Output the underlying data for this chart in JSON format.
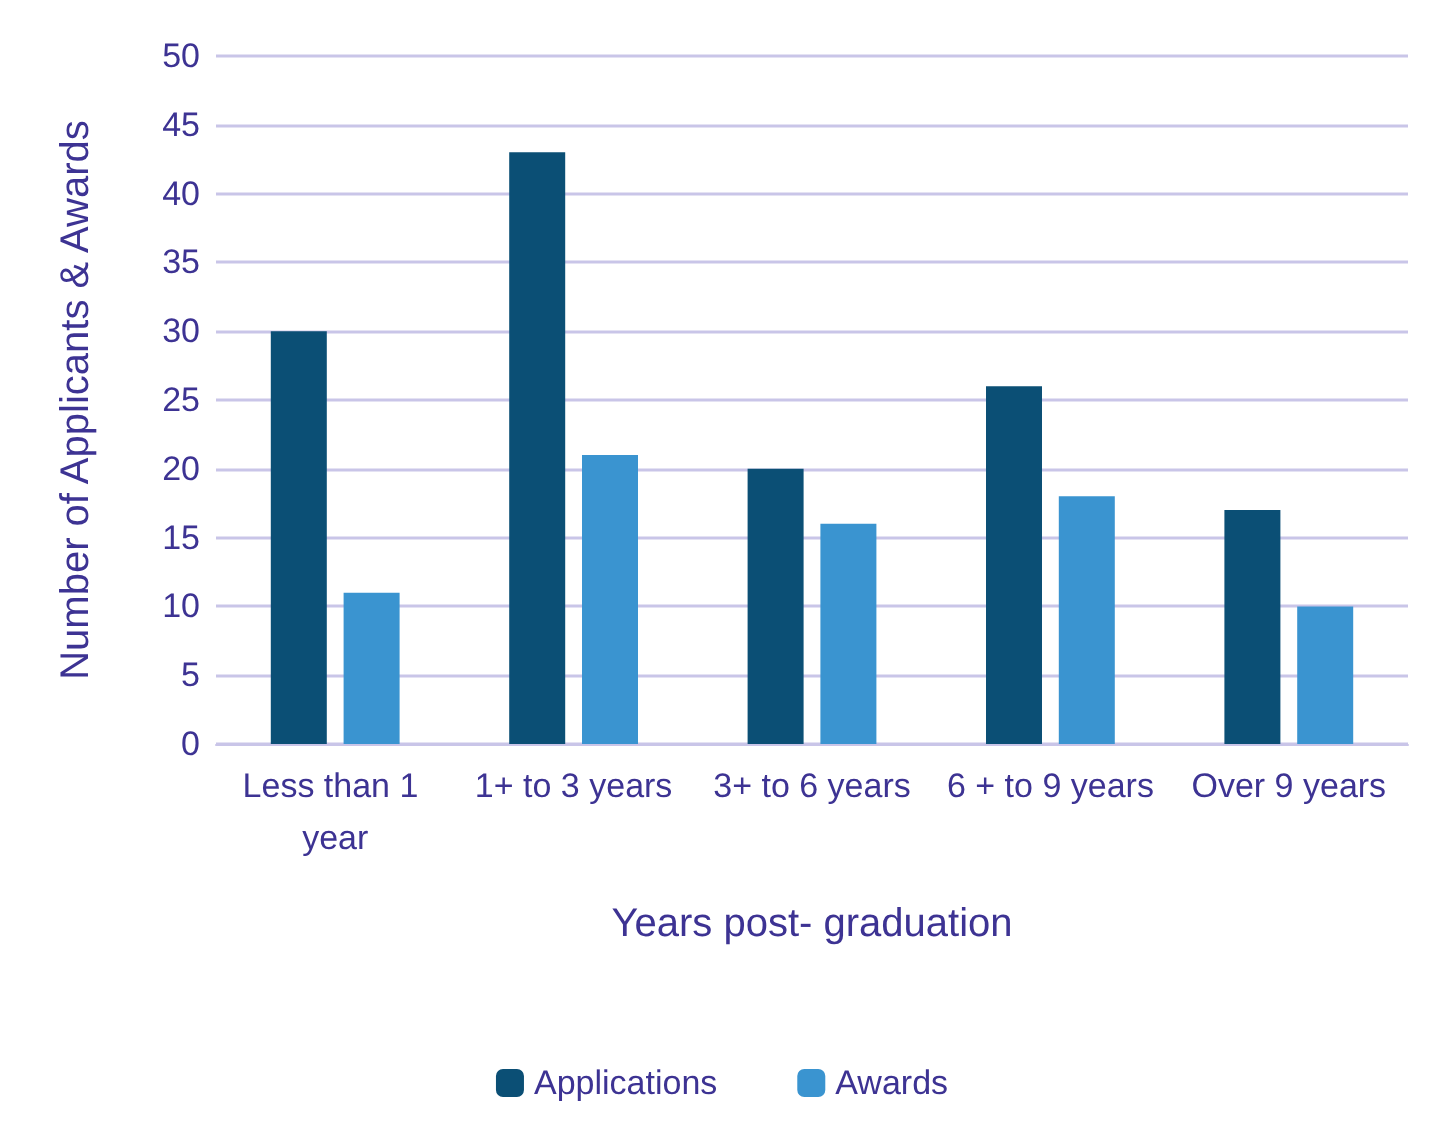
{
  "chart_data": {
    "type": "bar",
    "xlabel": "Years post- graduation",
    "ylabel": "Number of Applicants & Awards",
    "categories": [
      "Less than 1 year",
      "1+ to 3 years",
      "3+ to 6 years",
      "6 + to 9 years",
      "Over 9 years"
    ],
    "series": [
      {
        "name": "Applications",
        "color": "#0b4f75",
        "values": [
          30,
          43,
          20,
          26,
          17
        ]
      },
      {
        "name": "Awards",
        "color": "#3a94d0",
        "values": [
          11,
          21,
          16,
          18,
          10
        ]
      }
    ],
    "ylim": [
      0,
      50
    ],
    "yticks": [
      0,
      5,
      10,
      15,
      20,
      25,
      30,
      35,
      40,
      45,
      50
    ],
    "grid": "y",
    "legend": "bottom"
  }
}
